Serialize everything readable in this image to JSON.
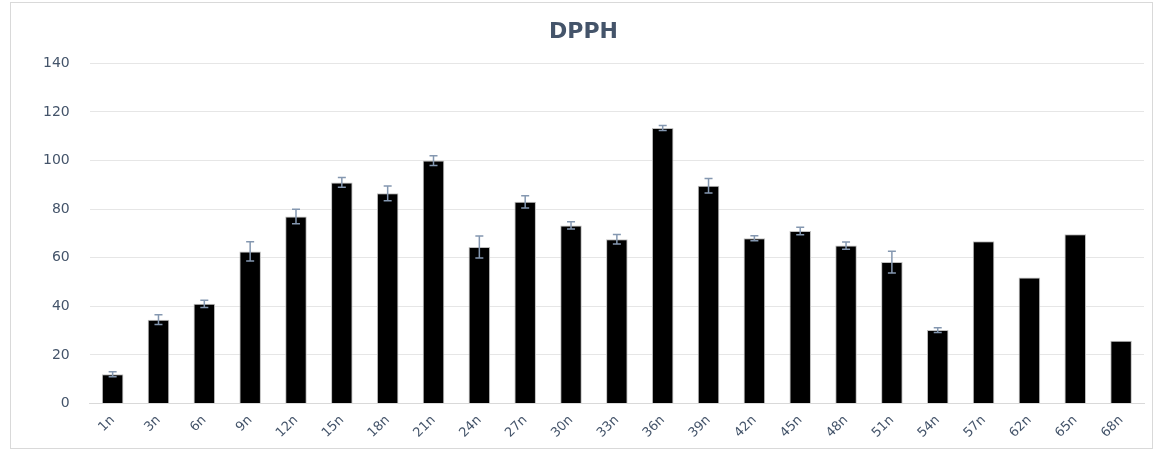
{
  "chart_data": {
    "type": "bar",
    "title": "DPPH",
    "categories": [
      "1n",
      "3n",
      "6n",
      "9n",
      "12n",
      "15n",
      "18n",
      "21n",
      "24n",
      "27n",
      "30n",
      "33n",
      "36n",
      "39n",
      "42n",
      "45n",
      "48n",
      "51n",
      "54n",
      "57n",
      "62n",
      "65n",
      "68n"
    ],
    "series": [
      {
        "color": "#000000",
        "values": [
          12,
          34.5,
          41,
          62.6,
          77,
          91,
          86.5,
          100,
          64.4,
          83,
          73.3,
          67.6,
          113.4,
          89.6,
          68,
          71,
          65,
          58.2,
          30.2,
          66.8,
          51.9,
          69.7,
          25.8
        ],
        "errors": [
          1,
          2,
          1.5,
          4,
          3,
          2,
          3,
          2,
          4.5,
          2.5,
          1.5,
          2,
          1,
          3,
          1,
          1.5,
          1.5,
          4.5,
          1,
          null,
          null,
          null,
          null
        ]
      }
    ],
    "ylim": [
      0,
      140
    ],
    "yticks": [
      0,
      20,
      40,
      60,
      80,
      100,
      120,
      140
    ],
    "grid": "y",
    "legend": false
  }
}
